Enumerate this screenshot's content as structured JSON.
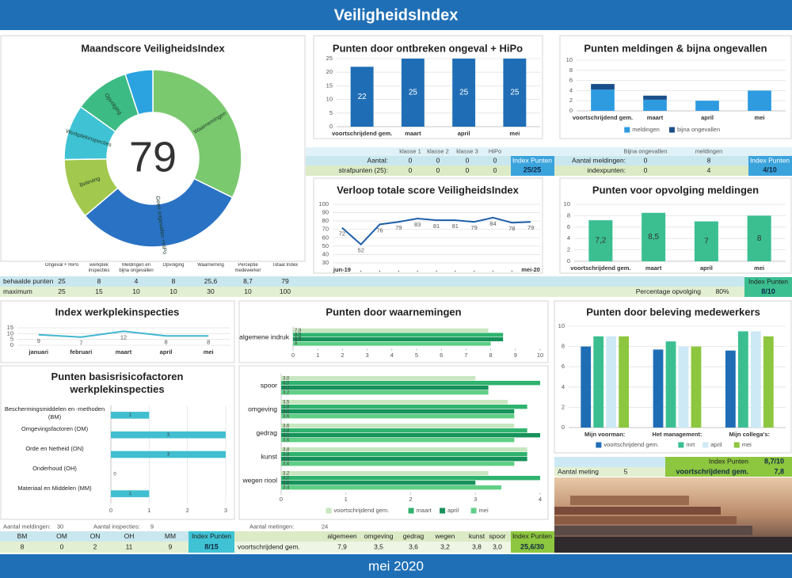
{
  "header": {
    "title": "VeiligheidsIndex"
  },
  "footer": {
    "period": "mei 2020"
  },
  "chart_data": [
    {
      "type": "donut",
      "title": "Maandscore VeiligheidsIndex",
      "center_label": "79",
      "categories": [
        "Waarnemingen",
        "Geen ongevallen +HiPo",
        "Beleving",
        "Werkplekinspecties",
        "Opvolging",
        null
      ],
      "values": [
        25.6,
        25,
        8.7,
        8,
        8,
        4
      ],
      "colors": [
        "#7bc96f",
        "#2a72c4",
        "#a2c84d",
        "#3fc3d4",
        "#3dbb84",
        "#2ba3e0"
      ]
    },
    {
      "type": "bar",
      "title": "Punten door ontbreken ongeval + HiPo",
      "categories": [
        "voortschrijdend gem.",
        "maart",
        "april",
        "mei"
      ],
      "values": [
        22,
        25,
        25,
        25
      ],
      "color": "#1f6eb5",
      "data_labels": true,
      "ylim": [
        0,
        25
      ],
      "yticks": [
        0,
        5,
        10,
        15,
        20,
        25
      ],
      "grid": true
    },
    {
      "type": "bar",
      "stacked": true,
      "title": "Punten meldingen & bijna ongevallen",
      "categories": [
        "voortschrijdend gem.",
        "maart",
        "april",
        "mei"
      ],
      "series": [
        {
          "name": "meldingen",
          "color": "#2e9be0",
          "values": [
            4.2,
            2.2,
            2,
            4
          ]
        },
        {
          "name": "bijna ongevallen",
          "color": "#1b4f8a",
          "values": [
            1.1,
            0.8,
            0,
            0
          ]
        }
      ],
      "ylim": [
        0,
        10
      ],
      "yticks": [
        0,
        2,
        4,
        6,
        8,
        10
      ],
      "grid": true,
      "legend": "bottom"
    },
    {
      "type": "line",
      "title": "Verloop totale score VeiligheidsIndex",
      "categories": [
        "jun-19",
        ".",
        ".",
        ".",
        ".",
        ".",
        ".",
        ".",
        ".",
        ".",
        "mei-20"
      ],
      "values": [
        72,
        52,
        76,
        79,
        83,
        81,
        81,
        79,
        84,
        78,
        79
      ],
      "color": "#1f5fa8",
      "data_labels": true,
      "ylim": [
        30,
        100
      ],
      "yticks": [
        30,
        40,
        50,
        60,
        70,
        80,
        90,
        100
      ],
      "grid": true
    },
    {
      "type": "bar",
      "title": "Punten voor opvolging meldingen",
      "categories": [
        "voortschrijdend gem.",
        "maart",
        "april",
        "mei"
      ],
      "values": [
        7.2,
        8.5,
        7,
        8
      ],
      "value_labels": [
        "7,2",
        "8,5",
        "7",
        "8"
      ],
      "color": "#3bbf91",
      "ylim": [
        0,
        10
      ],
      "yticks": [
        0,
        2,
        4,
        6,
        8,
        10
      ],
      "grid": true
    },
    {
      "type": "line",
      "title": "Index werkplekinspecties",
      "categories": [
        "januari",
        "februari",
        "maart",
        "april",
        "mei"
      ],
      "values": [
        9,
        7,
        12,
        8,
        8
      ],
      "color": "#41b6d0",
      "data_labels": true,
      "ylim": [
        0,
        15
      ],
      "yticks": [
        0,
        5,
        10,
        15
      ],
      "grid": true
    },
    {
      "type": "hbar",
      "title": "Punten door waarnemingen",
      "categories": [
        "algemene indruk"
      ],
      "series": [
        {
          "name": "voortschrijdend gem.",
          "color": "#c8e6c0",
          "values": [
            7.9
          ],
          "value_labels": [
            "7,9"
          ]
        },
        {
          "name": "maart",
          "color": "#2fb36e",
          "values": [
            8.5
          ],
          "value_labels": [
            "8,5"
          ]
        },
        {
          "name": "april",
          "color": "#16925a",
          "values": [
            8.5
          ],
          "value_labels": [
            "8,5"
          ]
        },
        {
          "name": "mei",
          "color": "#5fcf85",
          "values": [
            8
          ],
          "value_labels": [
            "8"
          ]
        }
      ],
      "xlim": [
        0,
        10
      ],
      "xticks": [
        0,
        1,
        2,
        3,
        4,
        5,
        6,
        7,
        8,
        9,
        10
      ],
      "grid": false
    },
    {
      "type": "hbar",
      "categories": [
        "spoor",
        "omgeving",
        "gedrag",
        "kunst",
        "wegen riool"
      ],
      "series": [
        {
          "name": "voortschrijdend gem.",
          "color": "#c8e6c0",
          "values": [
            3.0,
            3.5,
            3.6,
            3.8,
            3.2
          ],
          "value_labels": [
            "3,0",
            "3,5",
            "3,6",
            "3,8",
            "3,2"
          ]
        },
        {
          "name": "maart",
          "color": "#2fb36e",
          "values": [
            4.0,
            3.8,
            3.8,
            3.8,
            4.0
          ],
          "value_labels": [
            "4,0",
            "3,8",
            "3,8",
            "3,8",
            "4,0"
          ]
        },
        {
          "name": "april",
          "color": "#16925a",
          "values": [
            3.2,
            3.6,
            4.0,
            3.8,
            3.0
          ],
          "value_labels": [
            "3,2",
            "3,6",
            "4,0",
            "3,8",
            "3,0"
          ]
        },
        {
          "name": "mei",
          "color": "#5fcf85",
          "values": [
            3.2,
            3.6,
            3.6,
            3.6,
            3.4
          ],
          "value_labels": [
            "3,2",
            "3,6",
            "3,6",
            "3,6",
            "3,4"
          ]
        }
      ],
      "xlim": [
        0,
        4
      ],
      "xticks": [
        0,
        1,
        2,
        3,
        4
      ],
      "grid": false,
      "legend": "bottom"
    },
    {
      "type": "bar",
      "title": "Punten door beleving medewerkers",
      "categories": [
        "Mijn voorman:",
        "Het management:",
        "Mijn collega's:"
      ],
      "series": [
        {
          "name": "voortschrijdend gem.",
          "color": "#1f6eb5",
          "values": [
            8.0,
            7.7,
            7.6
          ]
        },
        {
          "name": "mrt",
          "color": "#3bbf91",
          "values": [
            9.0,
            8.5,
            9.5
          ]
        },
        {
          "name": "april",
          "color": "#cde9f5",
          "values": [
            9.0,
            8.0,
            9.5
          ]
        },
        {
          "name": "mei",
          "color": "#8dc63f",
          "values": [
            9.0,
            8.0,
            9.0
          ]
        }
      ],
      "ylim": [
        0,
        10
      ],
      "yticks": [
        0,
        2,
        4,
        6,
        8,
        10
      ],
      "grid": true,
      "legend": "bottom"
    },
    {
      "type": "hbar",
      "title": "Punten basisrisicofactoren werkplekinspecties",
      "categories": [
        "Beschermingsmiddelen en -methoden (BM)",
        "Omgevingsfactoren (OM)",
        "Orde en Netheid (ON)",
        "Onderhoud (OH)",
        "Materiaal en Middelen (MM)"
      ],
      "values": [
        1,
        3,
        3,
        0,
        1
      ],
      "color": "#41bfd0",
      "data_labels": true,
      "xlim": [
        0,
        3
      ],
      "xticks": [
        0,
        1,
        2,
        3
      ],
      "grid": true
    }
  ],
  "tables": {
    "summary": {
      "columns": [
        "Ongeval + HiPo",
        "werkplek inspecties",
        "Meldingen en bijna ongevallen",
        "Opvolging",
        "Waarneming",
        "Perceptie medewerker",
        "Totaal Index"
      ],
      "rows": [
        [
          "behaalde punten",
          "25",
          "8",
          "4",
          "8",
          "25,6",
          "8,7",
          "79"
        ],
        [
          "maximum",
          "25",
          "15",
          "10",
          "10",
          "30",
          "10",
          "100"
        ]
      ]
    },
    "hipo": {
      "columns": [
        "klasse 1",
        "klasse 2",
        "klasse 3",
        "HiPo"
      ],
      "rows": [
        [
          "Aantal:",
          "0",
          "0",
          "0",
          "0"
        ],
        [
          "strafpunten (25):",
          "0",
          "0",
          "0",
          "0"
        ]
      ],
      "index_label": "Index Punten",
      "index": "25/25"
    },
    "meldingen": {
      "columns": [
        "Bijna ongevallen",
        "meldingen"
      ],
      "rows": [
        [
          "Aantal meldingen:",
          "0",
          "8"
        ],
        [
          "indexpunten:",
          "0",
          "4"
        ]
      ],
      "index_label": "Index Punten",
      "index": "4/10"
    },
    "opvolging": {
      "label": "Percentage opvolging",
      "value": "80%",
      "index_label": "Index Punten",
      "index": "8/10"
    },
    "beleving": {
      "index_label": "Index Punten",
      "index": "8,7/10",
      "count_label": "Aantal meting",
      "count": "5",
      "avg_label": "voortschrijdend gem.",
      "avg": "7,8"
    },
    "inspecties": {
      "meldingen_label": "Aantal meldingen:",
      "meldingen": "30",
      "inspecties_label": "Aantal inspecties:",
      "inspecties": "9",
      "columns": [
        "BM",
        "OM",
        "ON",
        "OH",
        "MM"
      ],
      "values": [
        "8",
        "0",
        "2",
        "11",
        "9"
      ],
      "index_label": "Index Punten",
      "index": "8/15"
    },
    "metingen": {
      "count_label": "Aantal metingen:",
      "count": "24",
      "row_label": "voortschrijdend gem.",
      "columns": [
        "algemeen",
        "omgeving",
        "gedrag",
        "wegen",
        "kunst",
        "spoor"
      ],
      "values": [
        "7,9",
        "3,5",
        "3,6",
        "3,2",
        "3,8",
        "3,0"
      ],
      "index_label": "Index Punten",
      "index": "25,6/30"
    }
  }
}
